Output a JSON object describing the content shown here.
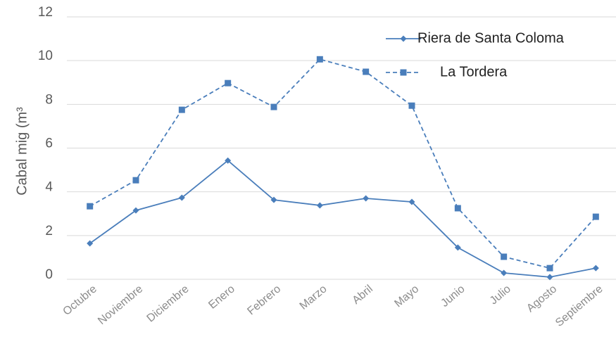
{
  "chart_data": {
    "type": "line",
    "y_label": "Cabal mig (m³",
    "categories": [
      "Octubre",
      "Noviembre",
      "Diciembre",
      "Enero",
      "Febrero",
      "Marzo",
      "Abril",
      "Mayo",
      "Junio",
      "Julio",
      "Agosto",
      "Septiembre"
    ],
    "series": [
      {
        "name": "Riera de Santa Coloma",
        "color": "#4a7ebb",
        "dash": false,
        "marker": "diamond",
        "values": [
          1.64,
          3.15,
          3.73,
          5.43,
          3.63,
          3.38,
          3.7,
          3.54,
          1.45,
          0.29,
          0.1,
          0.51
        ]
      },
      {
        "name": "La Tordera",
        "color": "#4a7ebb",
        "dash": true,
        "marker": "square",
        "values": [
          3.34,
          4.53,
          7.75,
          8.97,
          7.88,
          10.06,
          9.49,
          7.94,
          3.25,
          1.03,
          0.51,
          2.86
        ]
      }
    ],
    "ylim": [
      0,
      12
    ],
    "yticks": [
      0,
      2,
      4,
      6,
      8,
      10,
      12
    ],
    "grid": true,
    "legend": "top-right"
  }
}
